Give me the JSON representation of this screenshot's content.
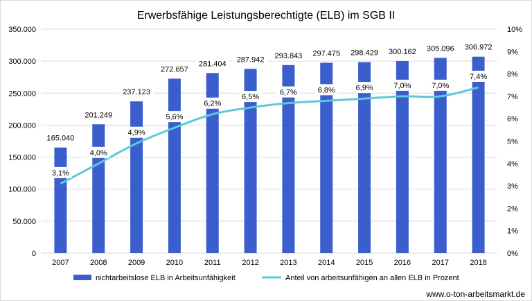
{
  "chart_data": {
    "type": "bar",
    "title": "Erwerbsfähige Leistungsberechtigte (ELB) im SGB II",
    "categories": [
      "2007",
      "2008",
      "2009",
      "2010",
      "2011",
      "2012",
      "2013",
      "2014",
      "2015",
      "2016",
      "2017",
      "2018"
    ],
    "series": [
      {
        "name": "nichtarbeitslose ELB in Arbeitsunfähigkeit",
        "type": "bar",
        "axis": "left",
        "color": "#3a5fcd",
        "values": [
          165040,
          201249,
          237123,
          272657,
          281404,
          287942,
          293843,
          297475,
          298429,
          300162,
          305096,
          306972
        ],
        "labels": [
          "165.040",
          "201.249",
          "237.123",
          "272.657",
          "281.404",
          "287.942",
          "293.843",
          "297.475",
          "298.429",
          "300.162",
          "305.096",
          "306.972"
        ]
      },
      {
        "name": "Anteil von arbeitsunfähigen an allen ELB in Prozent",
        "type": "line",
        "axis": "right",
        "color": "#5ec8d8",
        "values": [
          3.1,
          4.0,
          4.9,
          5.6,
          6.2,
          6.5,
          6.7,
          6.8,
          6.9,
          7.0,
          7.0,
          7.4
        ],
        "labels": [
          "3,1%",
          "4,0%",
          "4,9%",
          "5,6%",
          "6,2%",
          "6,5%",
          "6,7%",
          "6,8%",
          "6,9%",
          "7,0%",
          "7,0%",
          "7,4%"
        ]
      }
    ],
    "ylim": [
      0,
      350000
    ],
    "y_ticks": [
      "0",
      "50.000",
      "100.000",
      "150.000",
      "200.000",
      "250.000",
      "300.000",
      "350.000"
    ],
    "y2lim": [
      0,
      10
    ],
    "y2_ticks": [
      "0%",
      "1%",
      "2%",
      "3%",
      "4%",
      "5%",
      "6%",
      "7%",
      "8%",
      "9%",
      "10%"
    ],
    "grid": true,
    "legend": "bottom",
    "xlabel": "",
    "ylabel": ""
  },
  "source_text": "www.o-ton-arbeitsmarkt.de"
}
